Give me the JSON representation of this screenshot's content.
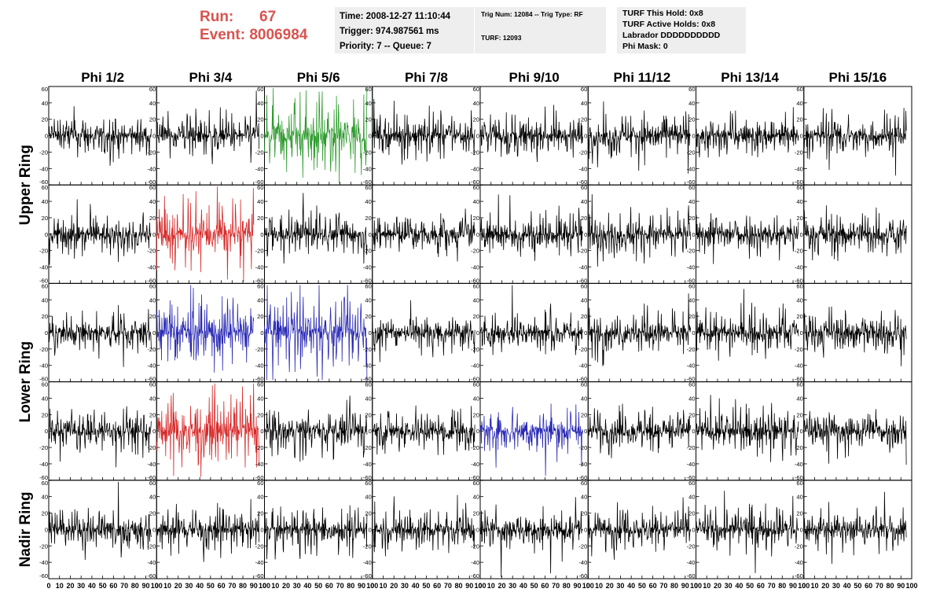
{
  "header": {
    "run_label": "Run:",
    "run_value": "67",
    "event_label": "Event:",
    "event_value": "8006984",
    "run_color": "#d9534f"
  },
  "info_boxes": {
    "time": "Time: 2008-12-27 11:10:44",
    "trigger": "Trigger: 974.987561 ms",
    "priority": "Priority: 7 -- Queue: 7",
    "trig_num": "Trig Num: 12084 -- Trig Type: RF",
    "turf": "TURF: 12093",
    "turf_this_hold": "TURF This Hold: 0x8",
    "turf_active_holds": "TURF Active Holds: 0x8",
    "labrador": "Labrador DDDDDDDDDD",
    "phi_mask": "Phi Mask: 0"
  },
  "chart_data": {
    "type": "line",
    "columns": [
      "Phi 1/2",
      "Phi 3/4",
      "Phi 5/6",
      "Phi 7/8",
      "Phi 9/10",
      "Phi 11/12",
      "Phi 13/14",
      "Phi 15/16"
    ],
    "ring_labels": [
      "Upper Ring",
      "Lower Ring",
      "Nadir Ring"
    ],
    "rows": 5,
    "ylim": [
      -60,
      60
    ],
    "xlim": [
      0,
      100
    ],
    "yticks": [
      "60",
      "40",
      "20",
      "0",
      "-20",
      "-40",
      "-60"
    ],
    "xticks": [
      "0",
      "10",
      "20",
      "30",
      "40",
      "50",
      "60",
      "70",
      "80",
      "90",
      "100"
    ],
    "colors": {
      "black": "#000000",
      "green": "#2e9b2e",
      "red": "#d62a2a",
      "blue": "#2a2ab4"
    },
    "highlights": [
      {
        "row": 0,
        "col": 2,
        "color": "green",
        "amplitude": 30,
        "span": [
          0,
          95
        ]
      },
      {
        "row": 1,
        "col": 1,
        "color": "red",
        "amplitude": 25,
        "span": [
          0,
          90
        ]
      },
      {
        "row": 2,
        "col": 1,
        "color": "blue",
        "amplitude": 25,
        "span": [
          0,
          90
        ]
      },
      {
        "row": 2,
        "col": 2,
        "color": "blue",
        "amplitude": 28,
        "span": [
          0,
          95
        ]
      },
      {
        "row": 3,
        "col": 1,
        "color": "red",
        "amplitude": 28,
        "span": [
          0,
          95
        ]
      },
      {
        "row": 3,
        "col": 4,
        "color": "blue",
        "amplitude": 20,
        "span": [
          0,
          95
        ]
      }
    ],
    "default_amplitude": 17,
    "samples_per_trace": 260
  }
}
